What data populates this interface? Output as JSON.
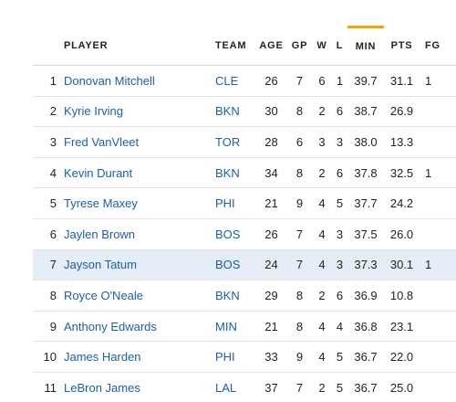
{
  "headers": {
    "rank": "",
    "player": "PLAYER",
    "team": "TEAM",
    "age": "AGE",
    "gp": "GP",
    "w": "W",
    "l": "L",
    "min": "MIN",
    "pts": "PTS",
    "fg": "FG"
  },
  "sort_column": "MIN",
  "colors": {
    "link": "#1b5fae",
    "sort_indicator": "#f0a800",
    "highlight_row": "#e5edf7"
  },
  "rows": [
    {
      "rank": "1",
      "player": "Donovan Mitchell",
      "team": "CLE",
      "age": "26",
      "gp": "7",
      "w": "6",
      "l": "1",
      "min": "39.7",
      "pts": "31.1",
      "fg": "1"
    },
    {
      "rank": "2",
      "player": "Kyrie Irving",
      "team": "BKN",
      "age": "30",
      "gp": "8",
      "w": "2",
      "l": "6",
      "min": "38.7",
      "pts": "26.9",
      "fg": ""
    },
    {
      "rank": "3",
      "player": "Fred VanVleet",
      "team": "TOR",
      "age": "28",
      "gp": "6",
      "w": "3",
      "l": "3",
      "min": "38.0",
      "pts": "13.3",
      "fg": ""
    },
    {
      "rank": "4",
      "player": "Kevin Durant",
      "team": "BKN",
      "age": "34",
      "gp": "8",
      "w": "2",
      "l": "6",
      "min": "37.8",
      "pts": "32.5",
      "fg": "1"
    },
    {
      "rank": "5",
      "player": "Tyrese Maxey",
      "team": "PHI",
      "age": "21",
      "gp": "9",
      "w": "4",
      "l": "5",
      "min": "37.7",
      "pts": "24.2",
      "fg": ""
    },
    {
      "rank": "6",
      "player": "Jaylen Brown",
      "team": "BOS",
      "age": "26",
      "gp": "7",
      "w": "4",
      "l": "3",
      "min": "37.5",
      "pts": "26.0",
      "fg": ""
    },
    {
      "rank": "7",
      "player": "Jayson Tatum",
      "team": "BOS",
      "age": "24",
      "gp": "7",
      "w": "4",
      "l": "3",
      "min": "37.3",
      "pts": "30.1",
      "fg": "1"
    },
    {
      "rank": "8",
      "player": "Royce O'Neale",
      "team": "BKN",
      "age": "29",
      "gp": "8",
      "w": "2",
      "l": "6",
      "min": "36.9",
      "pts": "10.8",
      "fg": ""
    },
    {
      "rank": "9",
      "player": "Anthony Edwards",
      "team": "MIN",
      "age": "21",
      "gp": "8",
      "w": "4",
      "l": "4",
      "min": "36.8",
      "pts": "23.1",
      "fg": ""
    },
    {
      "rank": "10",
      "player": "James Harden",
      "team": "PHI",
      "age": "33",
      "gp": "9",
      "w": "4",
      "l": "5",
      "min": "36.7",
      "pts": "22.0",
      "fg": ""
    },
    {
      "rank": "11",
      "player": "LeBron James",
      "team": "LAL",
      "age": "37",
      "gp": "7",
      "w": "2",
      "l": "5",
      "min": "36.7",
      "pts": "25.0",
      "fg": ""
    }
  ],
  "highlighted_row": "7"
}
